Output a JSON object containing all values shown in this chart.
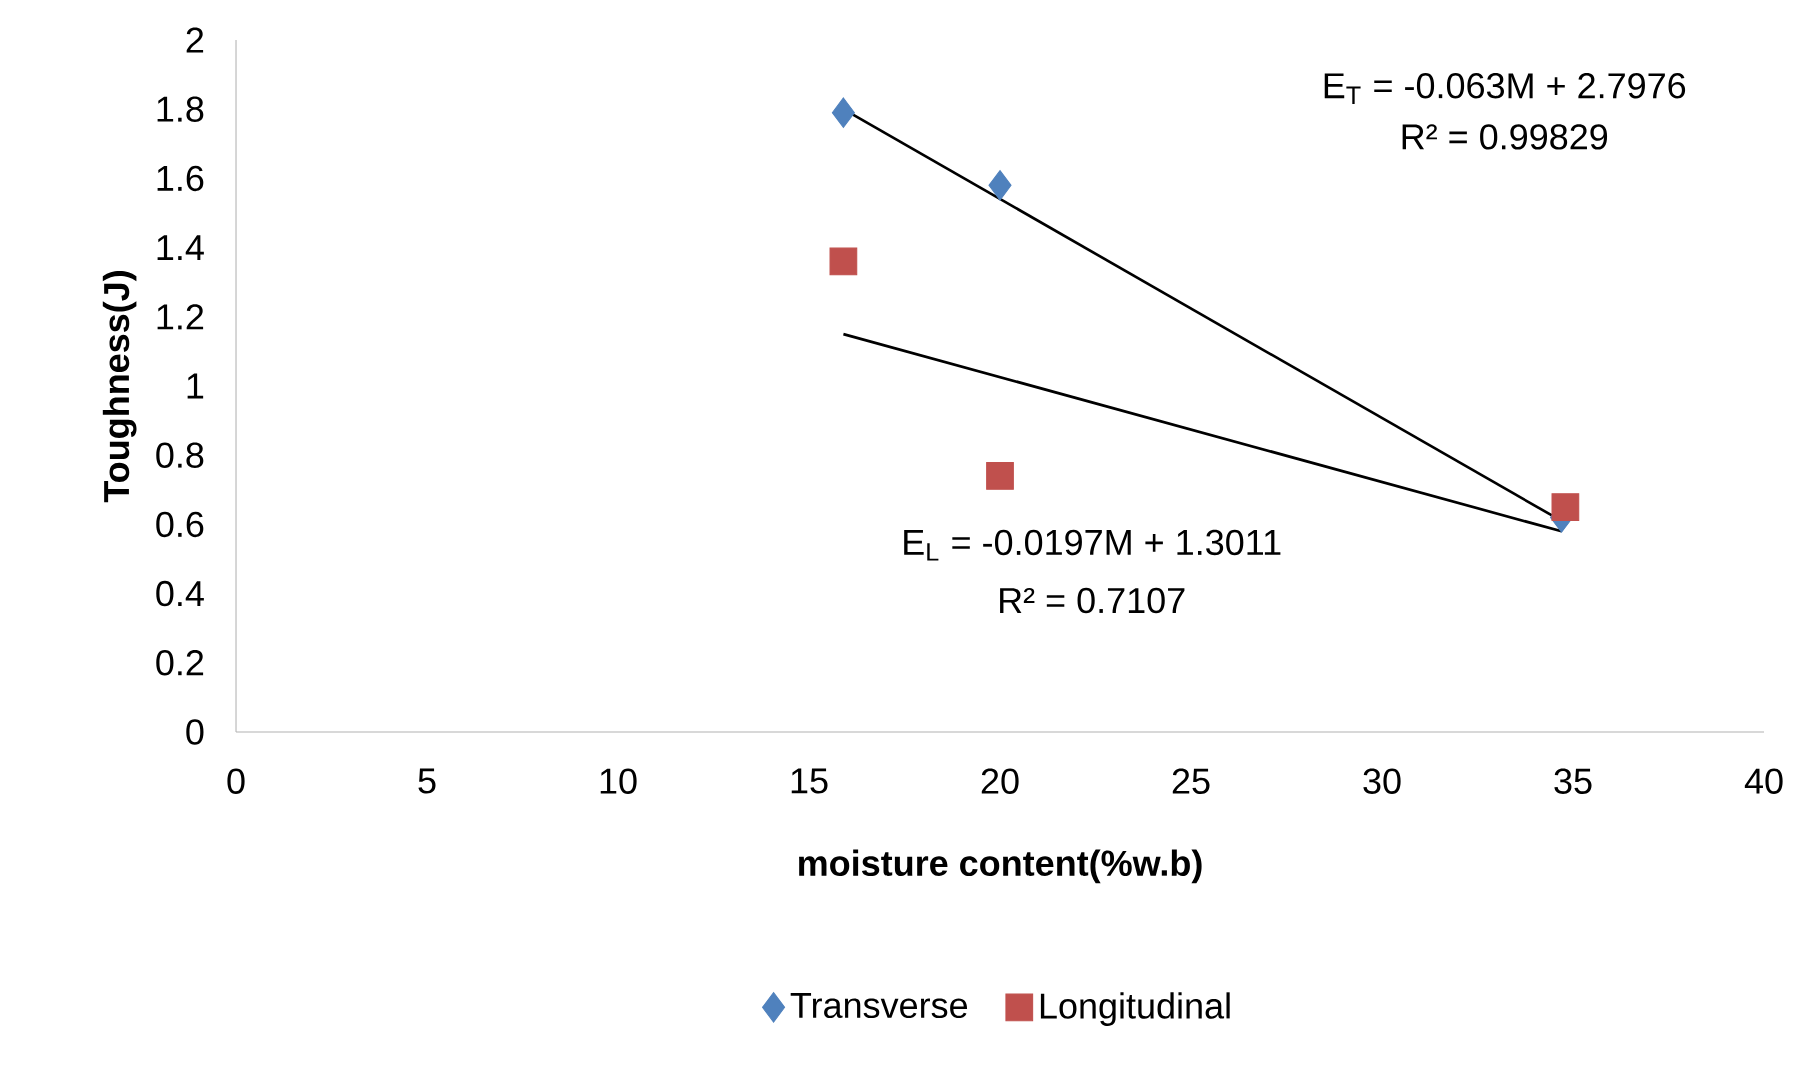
{
  "chart_data": {
    "type": "scatter",
    "xlabel": "moisture content(%w.b)",
    "ylabel": "Toughness(J)",
    "xlim": [
      0,
      40
    ],
    "xticks": [
      0,
      5,
      10,
      15,
      20,
      25,
      30,
      35,
      40
    ],
    "ylim": [
      0,
      2
    ],
    "yticks": [
      0,
      {
        "value": 0.2,
        "label": "0.2"
      },
      {
        "value": 0.4,
        "label": "0.4"
      },
      {
        "value": 0.6,
        "label": "0.6"
      },
      {
        "value": 0.8,
        "label": "0.8"
      },
      1,
      {
        "value": 1.2,
        "label": "1.2"
      },
      {
        "value": 1.4,
        "label": "1.4"
      },
      {
        "value": 1.6,
        "label": "1.6"
      },
      {
        "value": 1.8,
        "label": "1.8"
      },
      2
    ],
    "series": [
      {
        "name": "Transverse",
        "color": "#4f81bd",
        "marker": "diamond",
        "x": [
          15.9,
          20.0,
          34.7
        ],
        "values": [
          1.79,
          1.58,
          0.62
        ]
      },
      {
        "name": "Longitudinal",
        "color": "#c0504d",
        "marker": "square",
        "x": [
          15.9,
          20.0,
          34.8
        ],
        "values": [
          1.36,
          0.74,
          0.65
        ]
      },
      {
        "type": "line",
        "color": "#000000",
        "marker": "none",
        "x": [
          15.9,
          34.7
        ],
        "values": [
          1.8,
          0.61
        ]
      },
      {
        "type": "line",
        "color": "#000000",
        "marker": "none",
        "x": [
          15.9,
          34.7
        ],
        "values": [
          1.15,
          0.58
        ]
      }
    ],
    "annotations": [
      "E$_{T}$ = -0.063M + 2.7976",
      "R² = 0.99829",
      "E$_{L}$ = -0.0197M + 1.3011",
      "R² = 0.7107"
    ],
    "legend": "bottom",
    "grid": false
  }
}
